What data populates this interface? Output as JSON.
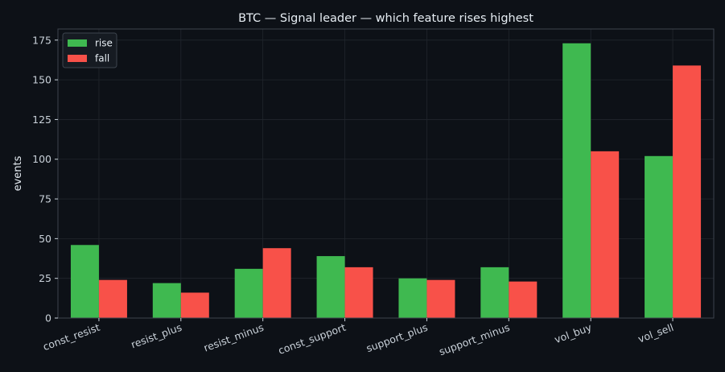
{
  "chart_data": {
    "type": "bar",
    "title": "BTC — Signal leader — which feature rises highest",
    "xlabel": "",
    "ylabel": "events",
    "ylim": [
      0,
      182
    ],
    "yticks": [
      0,
      25,
      50,
      75,
      100,
      125,
      150,
      175
    ],
    "categories": [
      "const_resist",
      "resist_plus",
      "resist_minus",
      "const_support",
      "support_plus",
      "support_minus",
      "vol_buy",
      "vol_sell"
    ],
    "series": [
      {
        "name": "rise",
        "color": "#3fb950",
        "values": [
          46,
          22,
          31,
          39,
          25,
          32,
          173,
          102
        ]
      },
      {
        "name": "fall",
        "color": "#f85149",
        "values": [
          24,
          16,
          44,
          32,
          24,
          23,
          105,
          159
        ]
      }
    ],
    "legend_position": "top-left",
    "grid": true
  },
  "colors": {
    "background": "#0d1117",
    "plot_border": "#3d444d",
    "grid": "#21262d"
  }
}
